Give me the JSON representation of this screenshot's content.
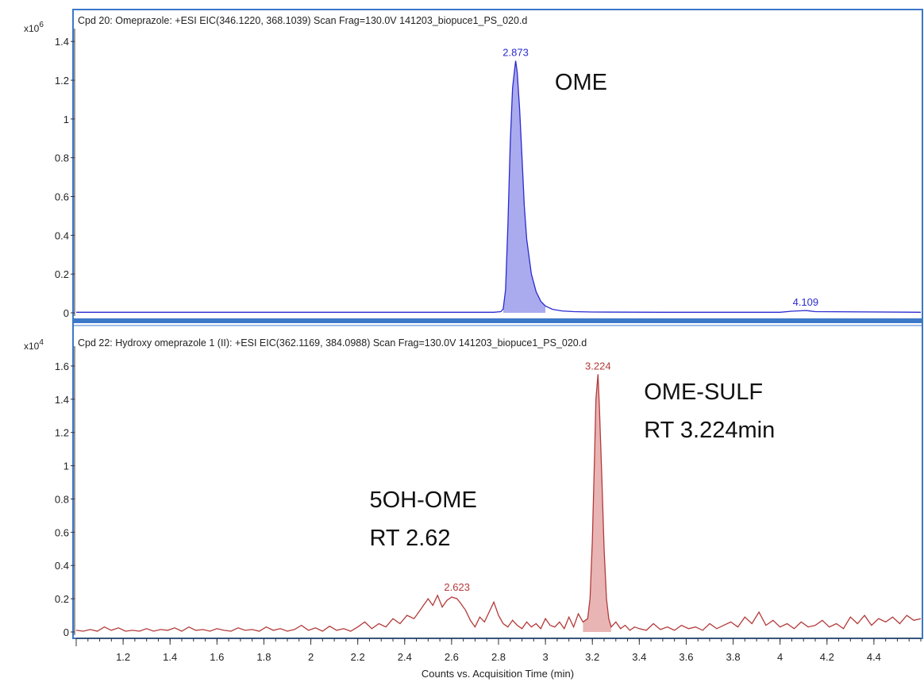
{
  "chart_data": [
    {
      "type": "line",
      "title": "Cpd 20: Omeprazole: +ESI EIC(346.1220, 368.1039) Scan Frag=130.0V 141203_biopuce1_PS_020.d",
      "y_multiplier_label": "x10",
      "y_multiplier_exp": "6",
      "ylim": [
        0,
        1.45
      ],
      "yticks": [
        0,
        0.2,
        0.4,
        0.6,
        0.8,
        1,
        1.2,
        1.4
      ],
      "ytick_labels": [
        "0",
        "0.2",
        "0.4",
        "0.6",
        "0.8",
        "1",
        "1.2",
        "1.4"
      ],
      "xlim": [
        1,
        4.6
      ],
      "color": "#2b2bd0",
      "fill_color": "#aaaaee",
      "series": [
        {
          "x": [
            1.0,
            2.78,
            2.81,
            2.82,
            2.83,
            2.84,
            2.85,
            2.86,
            2.87,
            2.873,
            2.88,
            2.89,
            2.9,
            2.91,
            2.92,
            2.94,
            2.96,
            2.98,
            3.0,
            3.03,
            3.07,
            3.12,
            3.2,
            3.5,
            4.0,
            4.05,
            4.11,
            4.15,
            4.6
          ],
          "y": [
            0.003,
            0.003,
            0.006,
            0.02,
            0.12,
            0.45,
            0.88,
            1.16,
            1.27,
            1.3,
            1.24,
            1.05,
            0.8,
            0.55,
            0.38,
            0.2,
            0.11,
            0.06,
            0.035,
            0.018,
            0.01,
            0.006,
            0.004,
            0.003,
            0.003,
            0.008,
            0.012,
            0.006,
            0.003
          ]
        }
      ],
      "peak_labels": [
        {
          "text": "2.873",
          "x": 2.873,
          "y": 1.3
        },
        {
          "text": "4.109",
          "x": 4.109,
          "y": 0.012
        }
      ],
      "annotations": [
        {
          "text": "OME",
          "x": 3.04,
          "y": 1.15
        }
      ]
    },
    {
      "type": "line",
      "title": "Cpd 22: Hydroxy omeprazole 1 (II): +ESI EIC(362.1169, 384.0988) Scan Frag=130.0V 141203_biopuce1_PS_020.d",
      "y_multiplier_label": "x10",
      "y_multiplier_exp": "4",
      "ylim": [
        0,
        1.7
      ],
      "yticks": [
        0,
        0.2,
        0.4,
        0.6,
        0.8,
        1,
        1.2,
        1.4,
        1.6
      ],
      "ytick_labels": [
        "0",
        "0.2",
        "0.4",
        "0.6",
        "0.8",
        "1",
        "1.2",
        "1.4",
        "1.6"
      ],
      "xlim": [
        1,
        4.6
      ],
      "xticks": [
        1.2,
        1.4,
        1.6,
        1.8,
        2,
        2.2,
        2.4,
        2.6,
        2.8,
        3,
        3.2,
        3.4,
        3.6,
        3.8,
        4,
        4.2,
        4.4
      ],
      "xtick_labels": [
        "1.2",
        "1.4",
        "1.6",
        "1.8",
        "2",
        "2.2",
        "2.4",
        "2.6",
        "2.8",
        "3",
        "3.2",
        "3.4",
        "3.6",
        "3.8",
        "4",
        "4.2",
        "4.4"
      ],
      "xlabel": "Counts vs. Acquisition Time (min)",
      "color": "#b33a3a",
      "fill_color": "#e9b4b4",
      "series": [
        {
          "x": [
            1.0,
            1.03,
            1.06,
            1.09,
            1.12,
            1.15,
            1.18,
            1.21,
            1.24,
            1.27,
            1.3,
            1.33,
            1.36,
            1.39,
            1.42,
            1.45,
            1.48,
            1.51,
            1.54,
            1.57,
            1.6,
            1.63,
            1.66,
            1.69,
            1.72,
            1.75,
            1.78,
            1.81,
            1.84,
            1.87,
            1.9,
            1.93,
            1.96,
            1.99,
            2.02,
            2.05,
            2.08,
            2.11,
            2.14,
            2.17,
            2.2,
            2.23,
            2.26,
            2.29,
            2.32,
            2.35,
            2.38,
            2.41,
            2.44,
            2.47,
            2.5,
            2.52,
            2.54,
            2.56,
            2.58,
            2.6,
            2.623,
            2.64,
            2.66,
            2.68,
            2.7,
            2.72,
            2.74,
            2.76,
            2.78,
            2.8,
            2.82,
            2.84,
            2.86,
            2.88,
            2.9,
            2.92,
            2.94,
            2.96,
            2.98,
            3.0,
            3.02,
            3.04,
            3.06,
            3.08,
            3.1,
            3.12,
            3.14,
            3.16,
            3.18,
            3.19,
            3.2,
            3.21,
            3.215,
            3.224,
            3.23,
            3.24,
            3.25,
            3.26,
            3.27,
            3.28,
            3.3,
            3.32,
            3.34,
            3.36,
            3.38,
            3.4,
            3.43,
            3.46,
            3.49,
            3.52,
            3.55,
            3.58,
            3.61,
            3.64,
            3.67,
            3.7,
            3.73,
            3.76,
            3.79,
            3.82,
            3.85,
            3.88,
            3.91,
            3.94,
            3.97,
            4.0,
            4.03,
            4.06,
            4.09,
            4.12,
            4.15,
            4.18,
            4.21,
            4.24,
            4.27,
            4.3,
            4.33,
            4.36,
            4.39,
            4.42,
            4.45,
            4.48,
            4.51,
            4.54,
            4.57,
            4.6
          ],
          "y": [
            0.01,
            0.005,
            0.015,
            0.005,
            0.03,
            0.01,
            0.025,
            0.005,
            0.01,
            0.005,
            0.02,
            0.005,
            0.015,
            0.01,
            0.025,
            0.005,
            0.03,
            0.01,
            0.015,
            0.005,
            0.02,
            0.01,
            0.005,
            0.025,
            0.01,
            0.015,
            0.005,
            0.03,
            0.01,
            0.02,
            0.005,
            0.015,
            0.04,
            0.01,
            0.025,
            0.005,
            0.035,
            0.01,
            0.02,
            0.005,
            0.03,
            0.06,
            0.02,
            0.05,
            0.03,
            0.08,
            0.05,
            0.1,
            0.08,
            0.14,
            0.2,
            0.16,
            0.22,
            0.15,
            0.19,
            0.21,
            0.2,
            0.17,
            0.13,
            0.07,
            0.03,
            0.09,
            0.06,
            0.12,
            0.18,
            0.1,
            0.05,
            0.03,
            0.07,
            0.04,
            0.02,
            0.06,
            0.03,
            0.05,
            0.02,
            0.08,
            0.04,
            0.03,
            0.06,
            0.02,
            0.09,
            0.03,
            0.11,
            0.06,
            0.08,
            0.2,
            0.55,
            1.1,
            1.4,
            1.55,
            1.35,
            0.95,
            0.5,
            0.2,
            0.08,
            0.03,
            0.06,
            0.02,
            0.04,
            0.01,
            0.03,
            0.02,
            0.01,
            0.05,
            0.015,
            0.03,
            0.01,
            0.04,
            0.02,
            0.03,
            0.01,
            0.05,
            0.02,
            0.04,
            0.06,
            0.03,
            0.09,
            0.05,
            0.12,
            0.04,
            0.07,
            0.03,
            0.05,
            0.02,
            0.06,
            0.03,
            0.04,
            0.07,
            0.03,
            0.05,
            0.02,
            0.09,
            0.05,
            0.1,
            0.04,
            0.08,
            0.06,
            0.09,
            0.05,
            0.1,
            0.07,
            0.08
          ]
        }
      ],
      "peak_labels": [
        {
          "text": "3.224",
          "x": 3.224,
          "y": 1.55
        },
        {
          "text": "2.623",
          "x": 2.623,
          "y": 0.22
        }
      ],
      "annotations": [
        {
          "text": "OME-SULF",
          "x": 3.42,
          "y": 1.4
        },
        {
          "text": "RT 3.224min",
          "x": 3.42,
          "y": 1.17
        },
        {
          "text": "5OH-OME",
          "x": 2.25,
          "y": 0.75
        },
        {
          "text": "RT 2.62",
          "x": 2.25,
          "y": 0.52
        }
      ]
    }
  ]
}
